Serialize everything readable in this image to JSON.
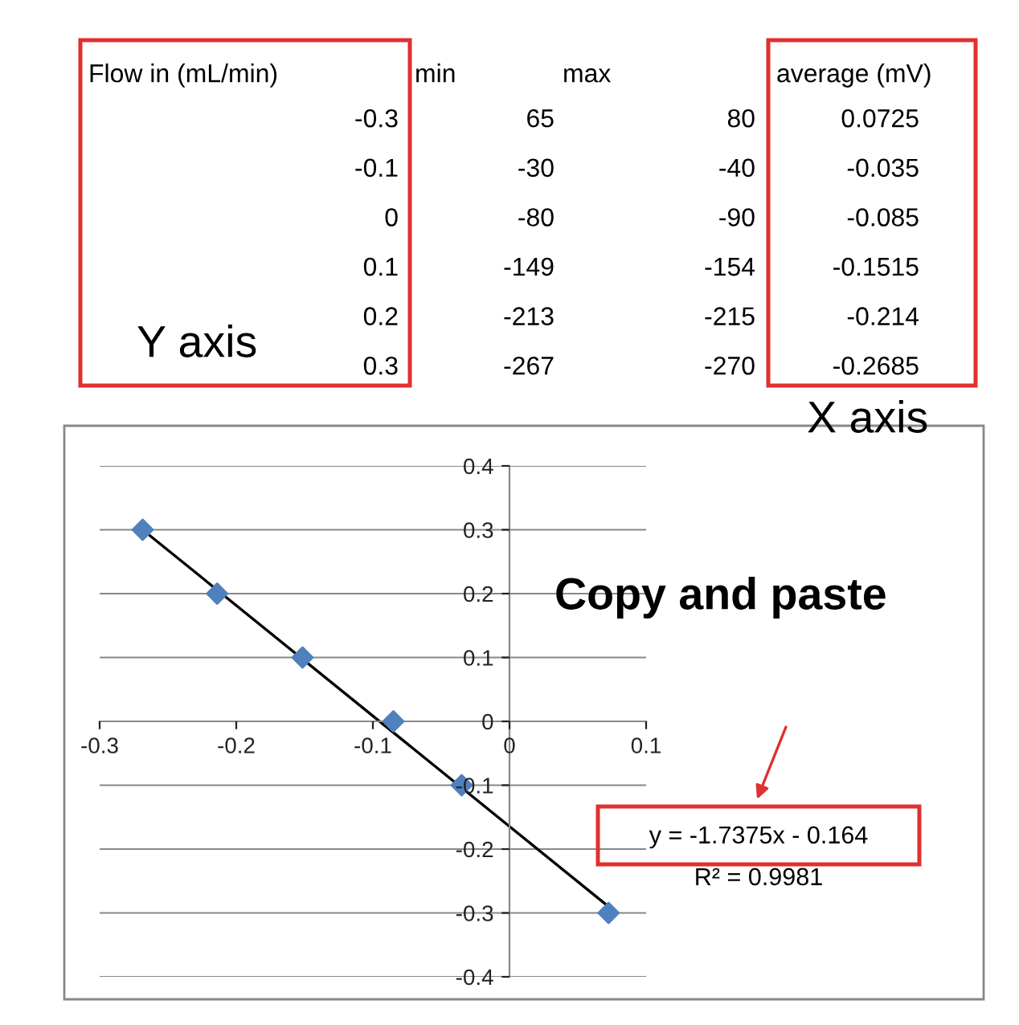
{
  "chart_data": {
    "type": "scatter",
    "series": [
      {
        "color": "#4f81bd",
        "marker": "diamond",
        "x": [
          0.0725,
          -0.035,
          -0.085,
          -0.1515,
          -0.214,
          -0.2685
        ],
        "values": [
          -0.3,
          -0.1,
          0,
          0.1,
          0.2,
          0.3
        ]
      },
      {
        "type": "line",
        "color": "#000000",
        "marker": "none",
        "x": [
          -0.2685,
          0.0725
        ],
        "values": [
          0.3,
          -0.29
        ]
      }
    ],
    "xlim": [
      -0.3,
      0.1
    ],
    "xticks": [
      -0.3,
      -0.2,
      -0.1,
      0,
      0.1
    ],
    "ylim": [
      -0.4,
      0.4
    ],
    "yticks": [
      -0.4,
      -0.3,
      -0.2,
      -0.1,
      0,
      0.1,
      0.2,
      0.3,
      0.4
    ],
    "grid": "y",
    "legend": false,
    "annotations": [
      "Flow in (mL/min)",
      "min",
      "max",
      "average (mV)",
      "-0.3",
      "65",
      "80",
      "0.0725",
      "-0.1",
      "-30",
      "-40",
      "-0.035",
      "0",
      "-80",
      "-90",
      "-0.085",
      "0.1",
      "-149",
      "-154",
      "-0.1515",
      "0.2",
      "-213",
      "-215",
      "-0.214",
      "0.3",
      "-267",
      "-270",
      "-0.2685",
      "Y axis",
      "X axis",
      "Copy and paste",
      "y = -1.7375x - 0.164",
      "R² = 0.9981"
    ]
  }
}
